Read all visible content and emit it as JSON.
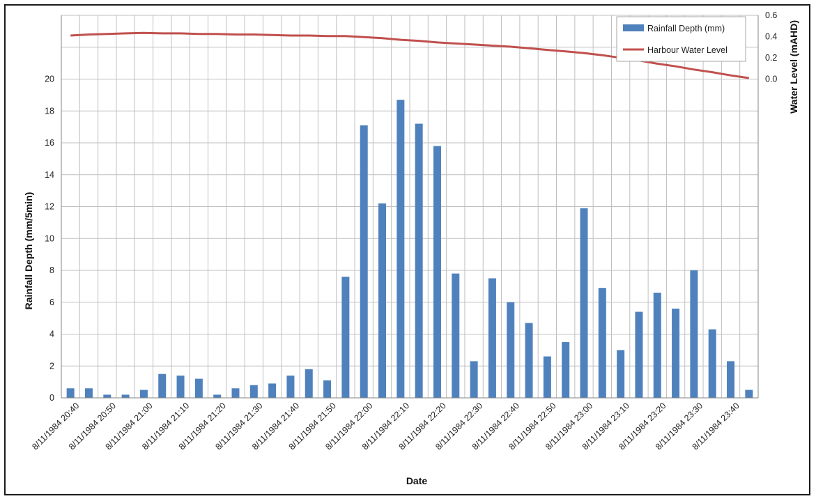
{
  "chart_data": {
    "type": "bar+line",
    "xlabel": "Date",
    "ylabel_left": "Rainfall Depth (mm/5min)",
    "ylabel_right": "Water Level (mAHD)",
    "left_axis": {
      "ticks": [
        0,
        2,
        4,
        6,
        8,
        10,
        12,
        14,
        16,
        18,
        20
      ],
      "range": [
        0,
        24
      ]
    },
    "right_axis": {
      "ticks": [
        "0.0",
        "0.2",
        "0.4",
        "0.6"
      ],
      "range": [
        0,
        0.6
      ]
    },
    "x_tick_labels": [
      "8/11/1984 20:40",
      "8/11/1984 20:50",
      "8/11/1984 21:00",
      "8/11/1984 21:10",
      "8/11/1984 21:20",
      "8/11/1984 21:30",
      "8/11/1984 21:40",
      "8/11/1984 21:50",
      "8/11/1984 22:00",
      "8/11/1984 22:10",
      "8/11/1984 22:20",
      "8/11/1984 22:30",
      "8/11/1984 22:40",
      "8/11/1984 22:50",
      "8/11/1984 23:00",
      "8/11/1984 23:10",
      "8/11/1984 23:20",
      "8/11/1984 23:30",
      "8/11/1984 23:40"
    ],
    "categories": [
      "20:40",
      "20:45",
      "20:50",
      "20:55",
      "21:00",
      "21:05",
      "21:10",
      "21:15",
      "21:20",
      "21:25",
      "21:30",
      "21:35",
      "21:40",
      "21:45",
      "21:50",
      "21:55",
      "22:00",
      "22:05",
      "22:10",
      "22:15",
      "22:20",
      "22:25",
      "22:30",
      "22:35",
      "22:40",
      "22:45",
      "22:50",
      "22:55",
      "23:00",
      "23:05",
      "23:10",
      "23:15",
      "23:20",
      "23:25",
      "23:30",
      "23:35",
      "23:40",
      "23:45"
    ],
    "series": [
      {
        "name": "Rainfall Depth (mm)",
        "kind": "bar",
        "axis": "left",
        "color": "#4f81bd",
        "values": [
          0.6,
          0.6,
          0.2,
          0.2,
          0.5,
          1.5,
          1.4,
          1.2,
          0.2,
          0.6,
          0.8,
          0.9,
          1.4,
          1.8,
          1.1,
          7.6,
          17.1,
          12.2,
          18.7,
          17.2,
          15.8,
          7.8,
          2.3,
          7.5,
          6.0,
          4.7,
          2.6,
          3.5,
          11.9,
          6.9,
          3.0,
          5.4,
          6.6,
          5.6,
          8.0,
          4.3,
          2.3,
          0.5
        ]
      },
      {
        "name": "Harbour Water Level",
        "kind": "line",
        "axis": "right",
        "color": "#c0504d",
        "values": [
          0.41,
          0.42,
          0.425,
          0.43,
          0.435,
          0.43,
          0.43,
          0.425,
          0.425,
          0.42,
          0.42,
          0.415,
          0.41,
          0.41,
          0.405,
          0.405,
          0.395,
          0.385,
          0.37,
          0.36,
          0.345,
          0.335,
          0.325,
          0.315,
          0.305,
          0.29,
          0.275,
          0.26,
          0.245,
          0.225,
          0.2,
          0.175,
          0.145,
          0.12,
          0.09,
          0.065,
          0.035,
          0.01
        ]
      }
    ],
    "grid": true,
    "legend": "top-right"
  }
}
